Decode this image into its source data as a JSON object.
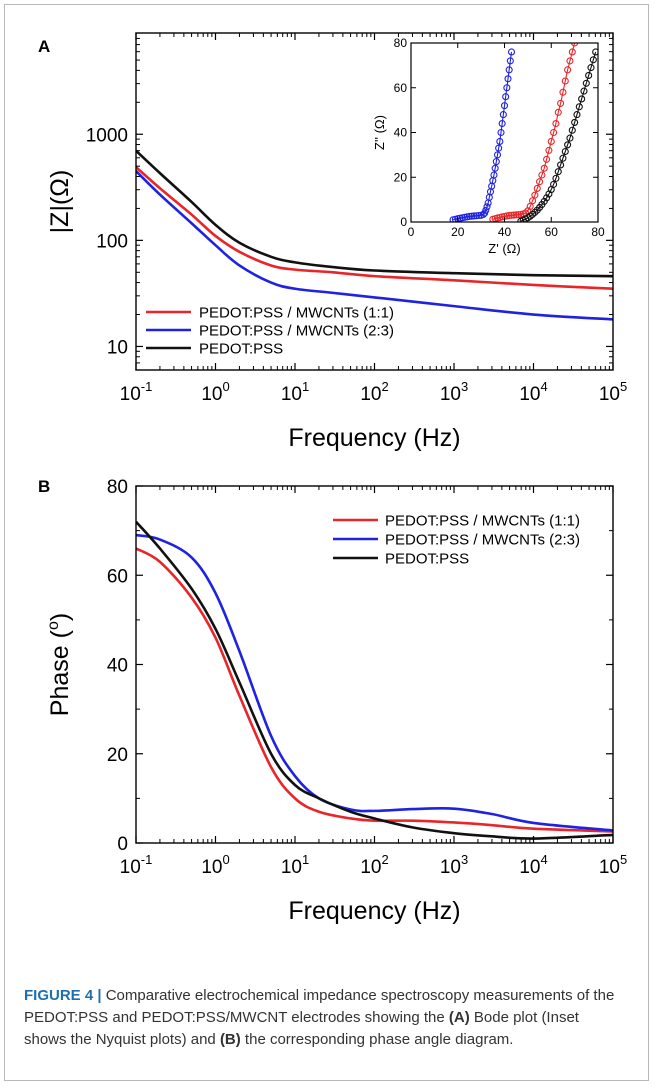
{
  "colors": {
    "red": "#e8262a",
    "blue": "#1f22e0",
    "black": "#111111"
  },
  "caption": {
    "label": "FIGURE 4 |",
    "text_1": " Comparative electrochemical impedance spectroscopy measurements of the PEDOT:PSS and PEDOT:PSS/MWCNT electrodes showing the ",
    "ref_a": "(A)",
    "text_2": " Bode plot (Inset shows the Nyquist plots) and ",
    "ref_b": "(B)",
    "text_3": " the corresponding phase angle diagram."
  },
  "chart_data": [
    {
      "panel": "A",
      "type": "line",
      "xscale": "log",
      "yscale": "log",
      "xlabel": "Frequency (Hz)",
      "ylabel": "|Z|(Ω)",
      "xlim": [
        0.1,
        100000
      ],
      "ylim": [
        6,
        9000
      ],
      "xticks": [
        0.1,
        1,
        10,
        100,
        1000,
        10000,
        100000
      ],
      "xtick_labels": [
        {
          "base": "10",
          "exp": "-1"
        },
        {
          "base": "10",
          "exp": "0"
        },
        {
          "base": "10",
          "exp": "1"
        },
        {
          "base": "10",
          "exp": "2"
        },
        {
          "base": "10",
          "exp": "3"
        },
        {
          "base": "10",
          "exp": "4"
        },
        {
          "base": "10",
          "exp": "5"
        }
      ],
      "yticks": [
        10,
        100,
        1000
      ],
      "ytick_labels": [
        "10",
        "100",
        "1000"
      ],
      "legend_position": "bottom-left",
      "series": [
        {
          "name": "PEDOT:PSS / MWCNTs (1:1)",
          "color": "#e8262a",
          "x": [
            0.1,
            0.2,
            0.5,
            1,
            2,
            5,
            10,
            30,
            100,
            1000,
            10000,
            100000
          ],
          "y": [
            490,
            310,
            175,
            110,
            78,
            58,
            53,
            50,
            46,
            42,
            38,
            35
          ]
        },
        {
          "name": "PEDOT:PSS / MWCNTs (2:3)",
          "color": "#1f22e0",
          "x": [
            0.1,
            0.2,
            0.5,
            1,
            2,
            5,
            10,
            30,
            100,
            1000,
            10000,
            100000
          ],
          "y": [
            450,
            270,
            145,
            90,
            58,
            40,
            35,
            32,
            29,
            24,
            20,
            18
          ]
        },
        {
          "name": "PEDOT:PSS",
          "color": "#111111",
          "x": [
            0.1,
            0.2,
            0.5,
            1,
            2,
            5,
            10,
            30,
            100,
            1000,
            10000,
            100000
          ],
          "y": [
            700,
            430,
            230,
            140,
            95,
            70,
            62,
            56,
            52,
            49,
            47,
            46
          ]
        }
      ],
      "inset": {
        "type": "scatter",
        "xlabel": "Z' (Ω)",
        "ylabel": "Z'' (Ω)",
        "xlim": [
          0,
          80
        ],
        "ylim": [
          0,
          80
        ],
        "xticks": [
          0,
          20,
          40,
          60,
          80
        ],
        "yticks": [
          0,
          20,
          40,
          60,
          80
        ],
        "xtick_labels": [
          "0",
          "20",
          "40",
          "60",
          "80"
        ],
        "ytick_labels": [
          "0",
          "20",
          "40",
          "60",
          "80"
        ],
        "series": [
          {
            "name": "PEDOT:PSS / MWCNTs (1:1)",
            "color": "#e8262a",
            "x": [
              35,
              36,
              37,
              38,
              39,
              40,
              41,
              42,
              43,
              44,
              45,
              46,
              47,
              48,
              49,
              50,
              51,
              52,
              53,
              54,
              55,
              56,
              57,
              58,
              59,
              60,
              61,
              62,
              63,
              64,
              65,
              66,
              67,
              68,
              69,
              70
            ],
            "y": [
              1.2,
              1.5,
              1.8,
              2.0,
              2.3,
              2.5,
              2.7,
              2.9,
              3.0,
              3.1,
              3.2,
              3.3,
              3.4,
              3.6,
              4.0,
              5.0,
              7.0,
              9.5,
              12,
              15,
              18,
              21,
              24,
              28,
              32,
              36,
              40,
              44,
              49,
              53,
              58,
              63,
              68,
              72,
              76,
              80
            ]
          },
          {
            "name": "PEDOT:PSS / MWCNTs (2:3)",
            "color": "#1f22e0",
            "x": [
              18,
              19,
              20,
              21,
              22,
              23,
              24,
              25,
              26,
              27,
              28,
              29,
              30,
              31,
              31.5,
              32,
              32.5,
              33,
              33.5,
              34,
              34.5,
              35,
              35.5,
              36,
              36.5,
              37,
              37.5,
              38,
              38.5,
              39,
              39.5,
              40,
              40.5,
              41,
              41.5,
              42,
              42.5,
              43
            ],
            "y": [
              1.0,
              1.2,
              1.5,
              1.7,
              1.9,
              2.1,
              2.3,
              2.5,
              2.6,
              2.7,
              2.8,
              2.9,
              3.0,
              3.4,
              4.0,
              5.2,
              6.8,
              8.5,
              11,
              13.5,
              16,
              18.5,
              21,
              24,
              27,
              30,
              33,
              36,
              40,
              44,
              48,
              52,
              56,
              60,
              64,
              68,
              72,
              76
            ]
          },
          {
            "name": "PEDOT:PSS",
            "color": "#111111",
            "x": [
              47,
              48,
              49,
              50,
              51,
              52,
              53,
              54,
              55,
              56,
              57,
              58,
              59,
              60,
              61,
              62,
              63,
              64,
              65,
              66,
              67,
              68,
              69,
              70,
              71,
              72,
              73,
              74,
              75,
              76,
              77,
              78,
              79
            ],
            "y": [
              0.4,
              0.8,
              1.3,
              1.9,
              2.6,
              3.4,
              4.3,
              5.3,
              6.5,
              7.8,
              9.2,
              10.8,
              12.5,
              14.5,
              16.8,
              19.5,
              22.5,
              25.5,
              28.5,
              31.5,
              34.5,
              37.5,
              41,
              44.5,
              48,
              51.5,
              55,
              58.5,
              62,
              65.5,
              69,
              72.5,
              76
            ]
          }
        ]
      }
    },
    {
      "panel": "B",
      "type": "line",
      "xscale": "log",
      "xlabel": "Frequency (Hz)",
      "ylabel": {
        "main": "Phase (",
        "sup": "o",
        "end": ")"
      },
      "xlim": [
        0.1,
        100000
      ],
      "ylim": [
        0,
        80
      ],
      "xticks": [
        0.1,
        1,
        10,
        100,
        1000,
        10000,
        100000
      ],
      "xtick_labels": [
        {
          "base": "10",
          "exp": "-1"
        },
        {
          "base": "10",
          "exp": "0"
        },
        {
          "base": "10",
          "exp": "1"
        },
        {
          "base": "10",
          "exp": "2"
        },
        {
          "base": "10",
          "exp": "3"
        },
        {
          "base": "10",
          "exp": "4"
        },
        {
          "base": "10",
          "exp": "5"
        }
      ],
      "yticks": [
        0,
        20,
        40,
        60,
        80
      ],
      "ytick_labels": [
        "0",
        "20",
        "40",
        "60",
        "80"
      ],
      "legend_position": "top-right",
      "series": [
        {
          "name": "PEDOT:PSS / MWCNTs (1:1)",
          "color": "#e8262a",
          "x": [
            0.1,
            0.2,
            0.5,
            1,
            2,
            5,
            10,
            20,
            50,
            100,
            300,
            1000,
            3000,
            10000,
            100000
          ],
          "y": [
            66,
            63,
            55,
            46,
            33,
            17,
            10,
            7,
            5.5,
            5,
            5,
            4.6,
            4,
            3.2,
            2.6
          ]
        },
        {
          "name": "PEDOT:PSS / MWCNTs (2:3)",
          "color": "#1f22e0",
          "x": [
            0.1,
            0.2,
            0.5,
            1,
            2,
            5,
            10,
            20,
            50,
            100,
            300,
            1000,
            3000,
            10000,
            100000
          ],
          "y": [
            69,
            68,
            64,
            56,
            43,
            24,
            15,
            10,
            7.5,
            7.2,
            7.6,
            7.7,
            6.5,
            4.5,
            2.8
          ]
        },
        {
          "name": "PEDOT:PSS",
          "color": "#111111",
          "x": [
            0.1,
            0.2,
            0.5,
            1,
            2,
            5,
            10,
            20,
            50,
            100,
            300,
            1000,
            3000,
            10000,
            100000
          ],
          "y": [
            72,
            66,
            57,
            48,
            36,
            20,
            13,
            10,
            7,
            5.5,
            3.5,
            2.2,
            1.5,
            1.0,
            1.8
          ]
        }
      ]
    }
  ]
}
